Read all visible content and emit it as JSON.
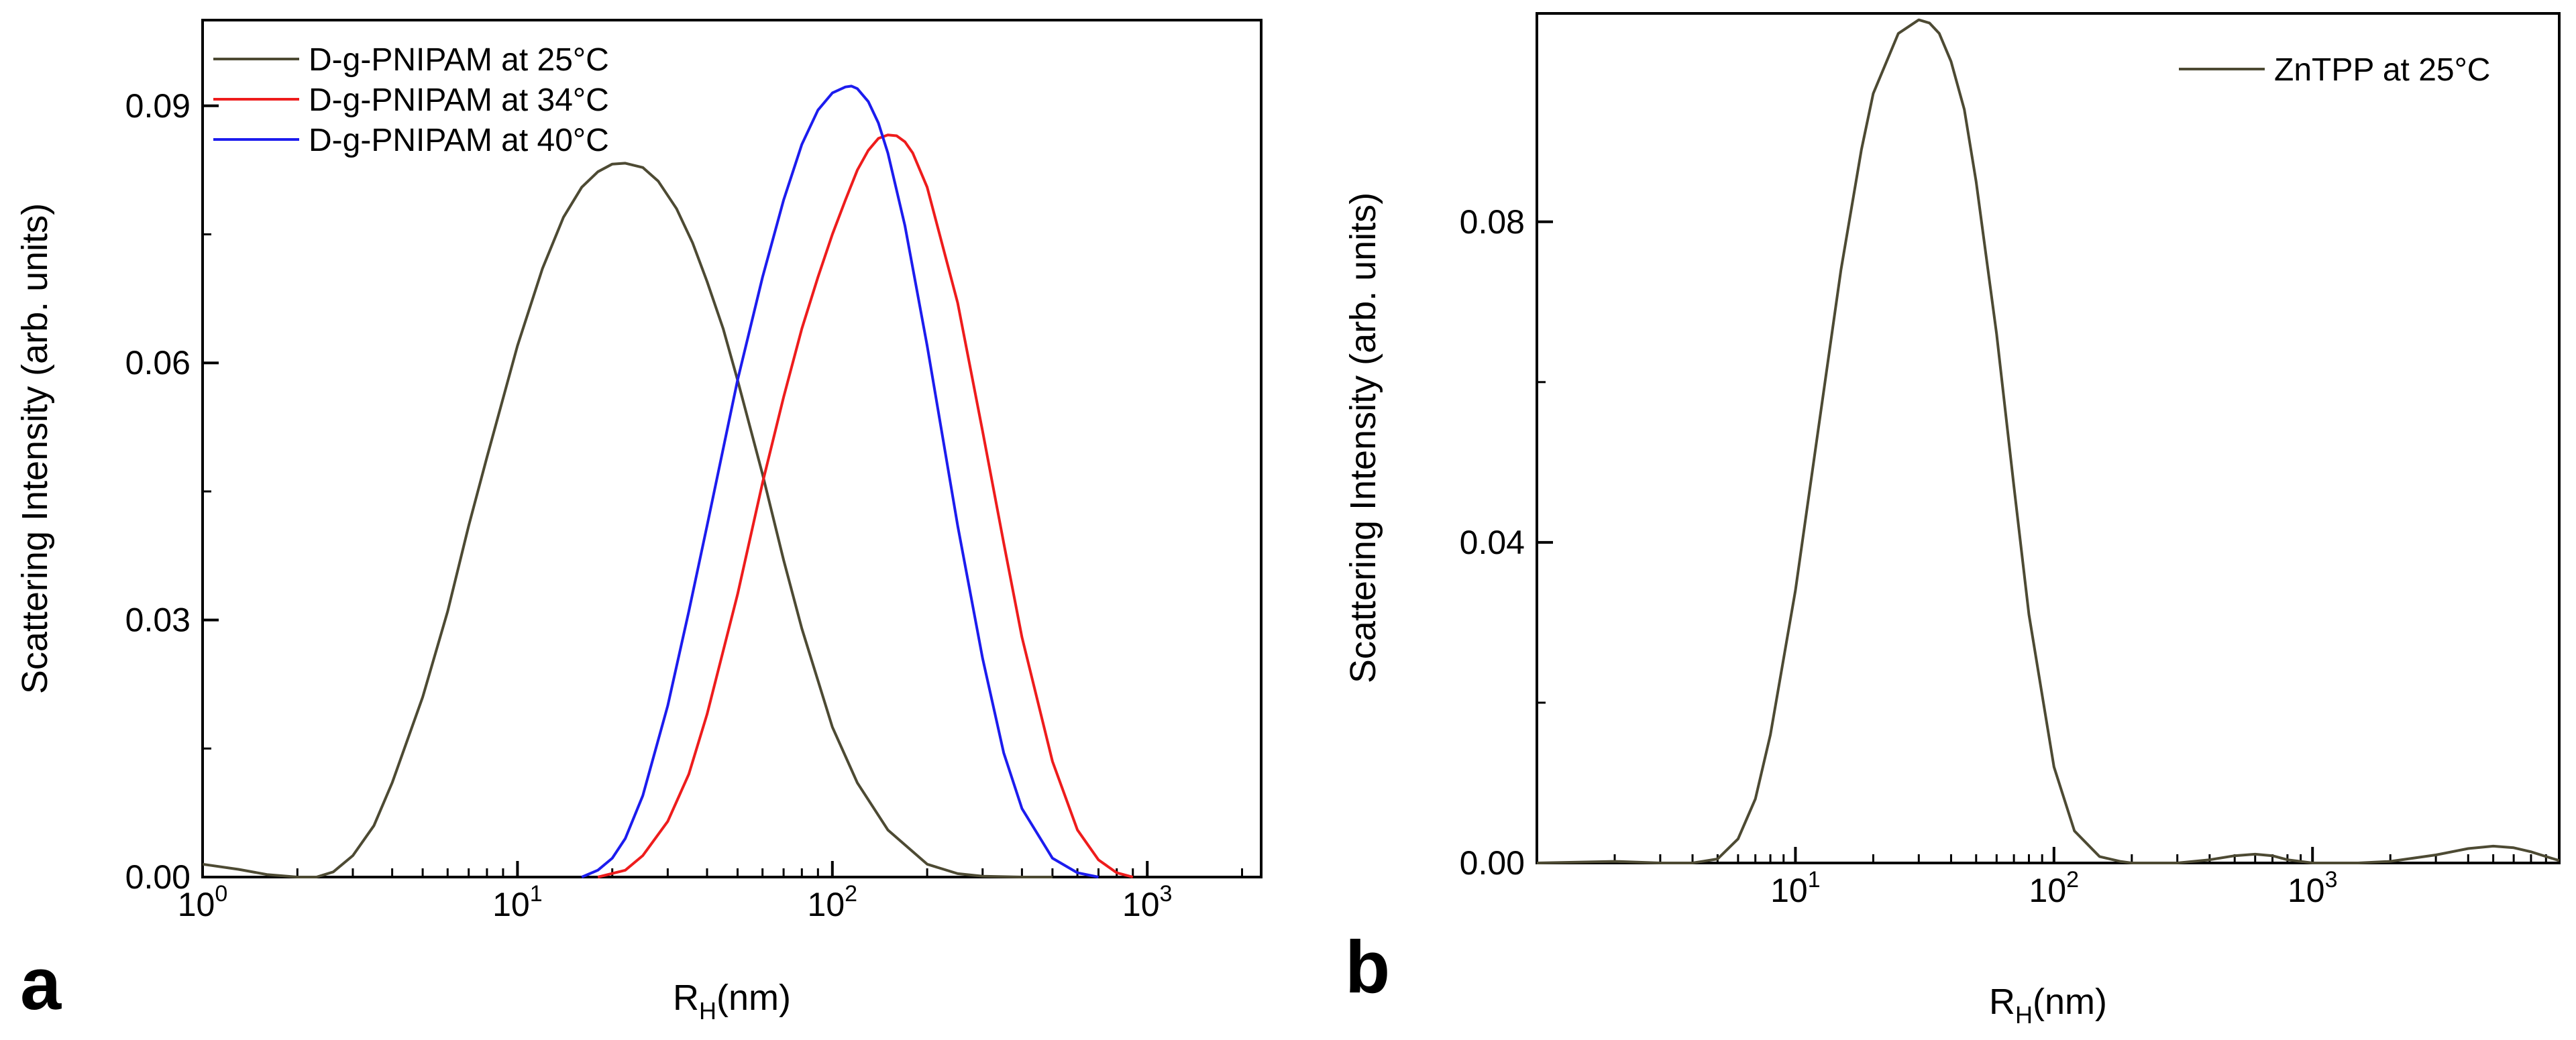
{
  "chart_data": [
    {
      "panel": "a",
      "type": "line",
      "title": "",
      "xlabel": "R_H(nm)",
      "xlabel_main": "R",
      "xlabel_sub": "H",
      "xlabel_suffix": "(nm)",
      "ylabel": "Scattering Intensity (arb. units)",
      "xscale": "log",
      "xlim": [
        1,
        2300
      ],
      "ylim": [
        0,
        0.1
      ],
      "xticks": [
        {
          "value": 1,
          "base": "10",
          "exp": "0"
        },
        {
          "value": 10,
          "base": "10",
          "exp": "1"
        },
        {
          "value": 100,
          "base": "10",
          "exp": "2"
        },
        {
          "value": 1000,
          "base": "10",
          "exp": "3"
        }
      ],
      "yticks": [
        {
          "value": 0,
          "label": "0.00"
        },
        {
          "value": 0.03,
          "label": "0.03"
        },
        {
          "value": 0.06,
          "label": "0.06"
        },
        {
          "value": 0.09,
          "label": "0.09"
        }
      ],
      "legend_position": "top-left",
      "series": [
        {
          "name": "D-g-PNIPAM at 25°C",
          "color": "#4d4a33",
          "x": [
            1,
            1.3,
            1.6,
            2,
            2.3,
            2.6,
            3,
            3.5,
            4,
            5,
            6,
            7,
            8,
            10,
            12,
            14,
            16,
            18,
            20,
            22,
            25,
            28,
            32,
            36,
            40,
            45,
            50,
            60,
            70,
            80,
            100,
            120,
            150,
            200,
            250,
            300,
            400,
            500
          ],
          "y": [
            0.0015,
            0.0009,
            0.0003,
            0.0,
            0.0,
            0.0006,
            0.0025,
            0.006,
            0.011,
            0.021,
            0.031,
            0.041,
            0.049,
            0.062,
            0.071,
            0.077,
            0.0805,
            0.0823,
            0.0832,
            0.0833,
            0.0828,
            0.0812,
            0.078,
            0.074,
            0.0695,
            0.064,
            0.058,
            0.047,
            0.037,
            0.029,
            0.0175,
            0.011,
            0.0055,
            0.0015,
            0.0004,
            0.0001,
            0.0,
            0.0
          ]
        },
        {
          "name": "D-g-PNIPAM at 34°C",
          "color": "#ee1c1c",
          "x": [
            18,
            22,
            25,
            30,
            35,
            40,
            50,
            60,
            70,
            80,
            90,
            100,
            110,
            120,
            130,
            140,
            150,
            160,
            170,
            180,
            200,
            250,
            300,
            350,
            400,
            500,
            600,
            700,
            800,
            900
          ],
          "y": [
            0.0,
            0.0008,
            0.0025,
            0.0065,
            0.012,
            0.019,
            0.033,
            0.046,
            0.056,
            0.064,
            0.07,
            0.075,
            0.079,
            0.0825,
            0.0848,
            0.0862,
            0.0866,
            0.0865,
            0.0858,
            0.0845,
            0.0805,
            0.067,
            0.052,
            0.039,
            0.028,
            0.0135,
            0.0055,
            0.002,
            0.0005,
            0.0
          ]
        },
        {
          "name": "D-g-PNIPAM at 40°C",
          "color": "#1c1cee",
          "x": [
            16,
            18,
            20,
            22,
            25,
            30,
            35,
            40,
            50,
            60,
            70,
            80,
            90,
            100,
            110,
            115,
            120,
            130,
            140,
            150,
            170,
            200,
            250,
            300,
            350,
            400,
            500,
            600,
            700
          ],
          "y": [
            0.0,
            0.0008,
            0.0022,
            0.0045,
            0.0095,
            0.02,
            0.031,
            0.041,
            0.058,
            0.07,
            0.079,
            0.0855,
            0.0895,
            0.0915,
            0.0922,
            0.0923,
            0.092,
            0.0905,
            0.088,
            0.0845,
            0.076,
            0.062,
            0.041,
            0.0255,
            0.0145,
            0.008,
            0.0022,
            0.0005,
            0.0
          ]
        }
      ]
    },
    {
      "panel": "b",
      "type": "line",
      "title": "",
      "xlabel": "R_H(nm)",
      "xlabel_main": "R",
      "xlabel_sub": "H",
      "xlabel_suffix": "(nm)",
      "ylabel": "Scattering Intensity (arb. units)",
      "xscale": "log",
      "xlim": [
        1,
        9000
      ],
      "ylim": [
        0,
        0.106
      ],
      "xticks": [
        {
          "value": 10,
          "base": "10",
          "exp": "1"
        },
        {
          "value": 100,
          "base": "10",
          "exp": "2"
        },
        {
          "value": 1000,
          "base": "10",
          "exp": "3"
        }
      ],
      "yticks": [
        {
          "value": 0,
          "label": "0.00"
        },
        {
          "value": 0.04,
          "label": "0.04"
        },
        {
          "value": 0.08,
          "label": "0.08"
        }
      ],
      "legend_position": "top-right",
      "series": [
        {
          "name": "ZnTPP at 25°C",
          "color": "#4d4a33",
          "x": [
            1,
            2,
            3,
            4,
            5,
            6,
            7,
            8,
            10,
            12,
            15,
            18,
            20,
            25,
            30,
            33,
            36,
            40,
            45,
            50,
            60,
            70,
            80,
            100,
            120,
            150,
            180,
            200,
            250,
            300,
            400,
            500,
            600,
            700,
            800,
            1000,
            1500,
            2000,
            3000,
            4000,
            5000,
            6000,
            7000,
            8000,
            9000
          ],
          "y": [
            0.0,
            0.0002,
            0.0,
            0.0,
            0.0005,
            0.003,
            0.008,
            0.016,
            0.034,
            0.052,
            0.074,
            0.089,
            0.096,
            0.1035,
            0.1052,
            0.1048,
            0.1035,
            0.1,
            0.094,
            0.085,
            0.066,
            0.047,
            0.031,
            0.012,
            0.004,
            0.0008,
            0.0002,
            0.0,
            0.0,
            0.0,
            0.0004,
            0.0009,
            0.0011,
            0.0009,
            0.0004,
            0.0,
            0.0,
            0.0002,
            0.001,
            0.0018,
            0.0021,
            0.0019,
            0.0014,
            0.0008,
            0.0003
          ]
        }
      ]
    }
  ]
}
